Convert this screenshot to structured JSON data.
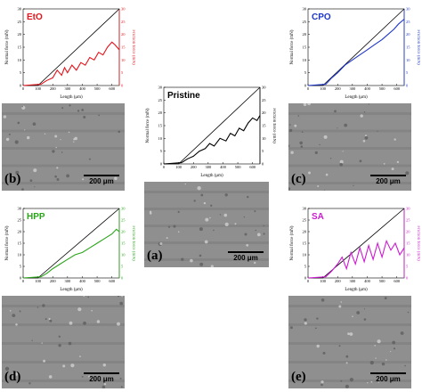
{
  "figure": {
    "scale_bar_label": "200 μm",
    "x_axis_label": "Length (μm)",
    "left_axis_label": "Normal force (mN)",
    "right_axis_label": "Friction force (mN)",
    "x_ticks": [
      "0",
      "100",
      "200",
      "300",
      "400",
      "500",
      "600"
    ],
    "y_ticks": [
      "0",
      "5",
      "10",
      "15",
      "20",
      "25",
      "30"
    ]
  },
  "panels": [
    {
      "id": "eto",
      "title": "EtO",
      "letter": "(b)",
      "color": "#e3141b"
    },
    {
      "id": "pristine",
      "title": "Pristine",
      "letter": "(a)",
      "color": "#000000"
    },
    {
      "id": "cpo",
      "title": "CPO",
      "letter": "(c)",
      "color": "#1f37c8"
    },
    {
      "id": "hpp",
      "title": "HPP",
      "letter": "(d)",
      "color": "#2aa51a"
    },
    {
      "id": "sa",
      "title": "SA",
      "letter": "(e)",
      "color": "#cc1bd0"
    }
  ],
  "chart_data": [
    {
      "type": "line",
      "title": "EtO",
      "xlabel": "Length (μm)",
      "ylabel": "Normal force (mN)",
      "y2label": "Friction force (mN)",
      "xlim": [
        0,
        650
      ],
      "ylim": [
        0,
        30
      ],
      "series": [
        {
          "x": [
            0,
            100,
            650
          ],
          "values": [
            0,
            0,
            30
          ]
        },
        {
          "x": [
            0,
            120,
            160,
            200,
            230,
            260,
            280,
            300,
            330,
            360,
            390,
            420,
            450,
            480,
            510,
            540,
            570,
            600,
            620,
            650
          ],
          "values": [
            0,
            0.5,
            2,
            3,
            6,
            4,
            7,
            5,
            8,
            6,
            9,
            8,
            11,
            10,
            13,
            12,
            15,
            17,
            16,
            14
          ]
        }
      ]
    },
    {
      "type": "line",
      "title": "Pristine",
      "xlabel": "Length (μm)",
      "ylabel": "Normal force (mN)",
      "y2label": "Friction force (mN)",
      "xlim": [
        0,
        650
      ],
      "ylim": [
        0,
        30
      ],
      "series": [
        {
          "x": [
            0,
            100,
            650
          ],
          "values": [
            0,
            0,
            30
          ]
        },
        {
          "x": [
            0,
            120,
            160,
            200,
            240,
            280,
            310,
            340,
            380,
            420,
            450,
            480,
            510,
            540,
            570,
            600,
            630,
            650
          ],
          "values": [
            0,
            0.5,
            2,
            3,
            5,
            6,
            8,
            7,
            10,
            9,
            12,
            11,
            14,
            13,
            16,
            18,
            17,
            19
          ]
        }
      ]
    },
    {
      "type": "line",
      "title": "CPO",
      "xlabel": "Length (μm)",
      "ylabel": "Normal force (mN)",
      "y2label": "Friction force (mN)",
      "xlim": [
        0,
        650
      ],
      "ylim": [
        0,
        30
      ],
      "series": [
        {
          "x": [
            0,
            100,
            650
          ],
          "values": [
            0,
            0,
            30
          ]
        },
        {
          "x": [
            0,
            120,
            160,
            200,
            250,
            300,
            350,
            400,
            450,
            500,
            540,
            580,
            610,
            650
          ],
          "values": [
            0,
            0.5,
            3,
            5,
            8,
            10,
            12,
            14,
            16,
            18,
            20,
            22,
            24,
            26
          ]
        }
      ]
    },
    {
      "type": "line",
      "title": "HPP",
      "xlabel": "Length (μm)",
      "ylabel": "Normal force (mN)",
      "y2label": "Friction force (mN)",
      "xlim": [
        0,
        650
      ],
      "ylim": [
        0,
        30
      ],
      "series": [
        {
          "x": [
            0,
            100,
            650
          ],
          "values": [
            0,
            0,
            30
          ]
        },
        {
          "x": [
            0,
            120,
            160,
            200,
            250,
            300,
            350,
            400,
            450,
            500,
            550,
            600,
            630,
            650
          ],
          "values": [
            0,
            0.5,
            2,
            4,
            6,
            8,
            10,
            11,
            13,
            15,
            17,
            19,
            21,
            20
          ]
        }
      ]
    },
    {
      "type": "line",
      "title": "SA",
      "xlabel": "Length (μm)",
      "ylabel": "Normal force (mN)",
      "y2label": "Friction force (mN)",
      "xlim": [
        0,
        650
      ],
      "ylim": [
        0,
        30
      ],
      "series": [
        {
          "x": [
            0,
            100,
            650
          ],
          "values": [
            0,
            0,
            30
          ]
        },
        {
          "x": [
            0,
            120,
            160,
            200,
            230,
            260,
            290,
            320,
            350,
            380,
            410,
            440,
            470,
            500,
            530,
            560,
            590,
            620,
            650
          ],
          "values": [
            0,
            0.5,
            3,
            6,
            9,
            4,
            11,
            6,
            13,
            7,
            14,
            8,
            15,
            9,
            16,
            12,
            15,
            10,
            13
          ]
        }
      ]
    }
  ]
}
